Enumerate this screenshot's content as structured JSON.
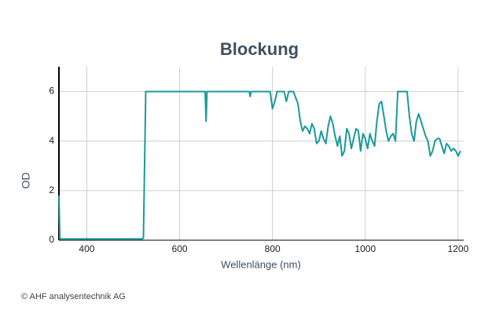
{
  "chart_data": {
    "type": "line",
    "title": "Blockung",
    "xlabel": "Wellenlänge (nm)",
    "ylabel": "OD",
    "credit": "© AHF analysentechnik AG",
    "xlim": [
      340,
      1212
    ],
    "xticks": [
      400,
      600,
      800,
      1000,
      1200
    ],
    "ylim": [
      0,
      7
    ],
    "yticks": [
      0,
      2,
      4,
      6
    ],
    "grid": true,
    "x": [
      340,
      342,
      345,
      400,
      450,
      500,
      520,
      522,
      527,
      655,
      657,
      659,
      750,
      752,
      754,
      795,
      800,
      805,
      810,
      825,
      830,
      835,
      845,
      855,
      860,
      865,
      870,
      875,
      880,
      885,
      890,
      895,
      900,
      905,
      910,
      915,
      920,
      925,
      930,
      935,
      940,
      945,
      950,
      955,
      960,
      965,
      970,
      975,
      980,
      985,
      990,
      995,
      1000,
      1005,
      1010,
      1015,
      1020,
      1025,
      1030,
      1035,
      1040,
      1045,
      1050,
      1055,
      1060,
      1065,
      1070,
      1090,
      1095,
      1100,
      1105,
      1110,
      1115,
      1120,
      1125,
      1130,
      1135,
      1140,
      1145,
      1150,
      1155,
      1160,
      1165,
      1170,
      1175,
      1180,
      1185,
      1190,
      1195,
      1200,
      1205
    ],
    "series": [
      {
        "name": "OD",
        "color": "#1a9a9a",
        "values": [
          1.8,
          0.05,
          0.05,
          0.05,
          0.05,
          0.05,
          0.05,
          0.1,
          6,
          6,
          4.8,
          6,
          6,
          5.8,
          6,
          6,
          5.3,
          5.6,
          6,
          6,
          5.6,
          6,
          6,
          5.5,
          4.8,
          4.4,
          4.6,
          4.5,
          4.3,
          4.7,
          4.5,
          3.9,
          4.0,
          4.4,
          4.1,
          3.9,
          4.6,
          5.0,
          4.7,
          4.2,
          3.8,
          4.2,
          3.4,
          3.6,
          4.5,
          4.3,
          3.7,
          4.1,
          4.5,
          4.4,
          3.6,
          4.3,
          4.1,
          3.7,
          4.3,
          4.0,
          3.8,
          4.8,
          5.5,
          5.6,
          5.0,
          4.4,
          4.0,
          4.2,
          4.3,
          4.0,
          6.0,
          6.0,
          5.0,
          4.3,
          4.0,
          4.8,
          5.1,
          4.8,
          4.5,
          4.2,
          4.0,
          3.4,
          3.6,
          4.0,
          4.1,
          4.1,
          3.8,
          3.5,
          3.9,
          3.8,
          3.6,
          3.7,
          3.6,
          3.4,
          3.6
        ]
      }
    ]
  }
}
